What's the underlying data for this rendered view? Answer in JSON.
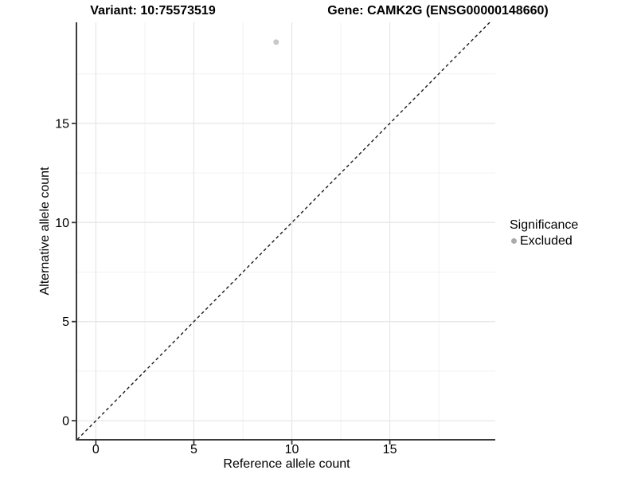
{
  "title": {
    "variant": "Variant: 10:75573519",
    "gene": "Gene: CAMK2G (ENSG00000148660)"
  },
  "chart_data": {
    "type": "scatter",
    "title_left": "Variant: 10:75573519",
    "title_right": "Gene: CAMK2G (ENSG00000148660)",
    "xlabel": "Reference allele count",
    "ylabel": "Alternative allele count",
    "xlim": [
      -0.95,
      20.38
    ],
    "ylim": [
      -0.96,
      20.1
    ],
    "x_major_ticks": [
      0,
      5,
      10,
      15
    ],
    "y_major_ticks": [
      0,
      5,
      10,
      15
    ],
    "x_minor_ticks": [
      2.5,
      7.5,
      12.5,
      17.5
    ],
    "y_minor_ticks": [
      2.5,
      7.5,
      12.5,
      17.5
    ],
    "grid": true,
    "points": [
      {
        "x": 9.2,
        "y": 19.1,
        "significance": "Excluded"
      }
    ],
    "reference_line": {
      "type": "identity",
      "slope": 1,
      "intercept": 0,
      "dashed": true
    },
    "legend": {
      "title": "Significance",
      "position": "right",
      "items": [
        {
          "label": "Excluded",
          "color": "#ababab"
        }
      ]
    },
    "colors": {
      "point": "#c8c8c8",
      "reference_line": "#1a1a1a",
      "axis_line": "#3a3a3a",
      "major_grid": "#e7e7e7",
      "minor_grid": "#f2f2f2",
      "text": "#000000"
    }
  }
}
